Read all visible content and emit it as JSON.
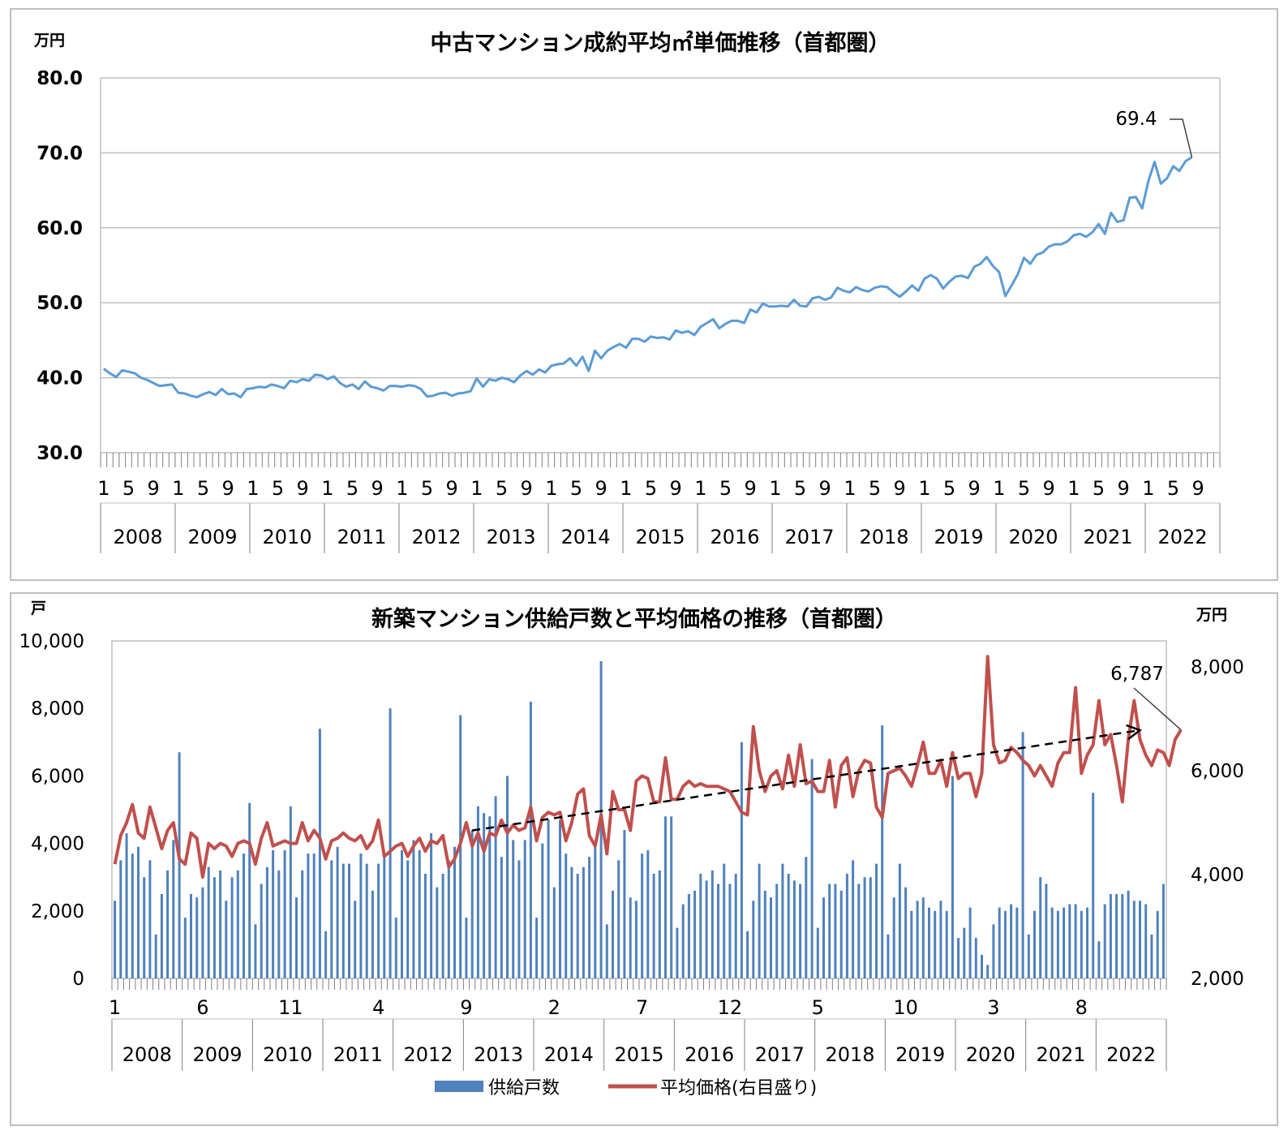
{
  "chart_data": [
    {
      "type": "line",
      "title": "中古マンション成約平均㎡単価推移（首都圏）",
      "y_unit": "万円",
      "ylim": [
        30.0,
        80.0
      ],
      "y_ticks": [
        "80.0",
        "70.0",
        "60.0",
        "50.0",
        "40.0",
        "30.0"
      ],
      "month_ticks": [
        "1",
        "5",
        "9"
      ],
      "years": [
        "2008",
        "2009",
        "2010",
        "2011",
        "2012",
        "2013",
        "2014",
        "2015",
        "2016",
        "2017",
        "2018",
        "2019",
        "2020",
        "2021",
        "2022"
      ],
      "last_value_label": "69.4",
      "grid": true,
      "series": [
        {
          "color": "#5b9bd5",
          "values": [
            41.2,
            40.6,
            40.1,
            41.0,
            40.8,
            40.6,
            40.0,
            39.7,
            39.3,
            38.9,
            39.0,
            39.1,
            38.0,
            37.9,
            37.6,
            37.4,
            37.8,
            38.1,
            37.7,
            38.5,
            37.8,
            37.9,
            37.4,
            38.5,
            38.6,
            38.8,
            38.7,
            39.1,
            38.9,
            38.6,
            39.6,
            39.4,
            39.8,
            39.6,
            40.4,
            40.3,
            39.8,
            40.2,
            39.3,
            38.8,
            39.1,
            38.5,
            39.5,
            38.8,
            38.6,
            38.3,
            38.9,
            38.9,
            38.8,
            39.0,
            38.9,
            38.5,
            37.5,
            37.6,
            37.9,
            38.0,
            37.6,
            37.9,
            38.0,
            38.2,
            39.9,
            38.8,
            39.8,
            39.6,
            40.0,
            39.8,
            39.4,
            40.3,
            40.9,
            40.4,
            41.1,
            40.7,
            41.6,
            41.8,
            41.9,
            42.6,
            41.6,
            42.8,
            40.9,
            43.6,
            42.6,
            43.6,
            44.1,
            44.5,
            44.0,
            45.2,
            45.2,
            44.8,
            45.5,
            45.3,
            45.4,
            45.1,
            46.3,
            46.0,
            46.2,
            45.7,
            46.8,
            47.3,
            47.8,
            46.6,
            47.2,
            47.6,
            47.6,
            47.3,
            49.1,
            48.7,
            49.9,
            49.5,
            49.5,
            49.6,
            49.5,
            50.4,
            49.6,
            49.5,
            50.6,
            50.8,
            50.4,
            50.7,
            52.0,
            51.6,
            51.4,
            52.1,
            51.7,
            51.5,
            52.0,
            52.2,
            52.1,
            51.4,
            50.8,
            51.5,
            52.3,
            51.6,
            53.2,
            53.7,
            53.2,
            51.9,
            52.8,
            53.5,
            53.6,
            53.3,
            54.8,
            55.2,
            56.1,
            54.9,
            54.1,
            50.9,
            52.3,
            53.8,
            56.0,
            55.2,
            56.4,
            56.7,
            57.5,
            57.8,
            57.8,
            58.2,
            59.0,
            59.2,
            58.8,
            59.4,
            60.5,
            59.2,
            62.0,
            60.8,
            61.0,
            64.0,
            64.1,
            62.6,
            66.2,
            68.8,
            65.9,
            66.6,
            68.2,
            67.6,
            68.9,
            69.4
          ]
        }
      ]
    },
    {
      "type": "bar+line",
      "title": "新築マンション供給戸数と平均価格の推移（首都圏）",
      "y_unit_left": "戸",
      "y_unit_right": "万円",
      "ylim_left": [
        0,
        10000
      ],
      "ylim_right": [
        2000,
        8500
      ],
      "y_ticks_left": [
        "10,000",
        "8,000",
        "6,000",
        "4,000",
        "2,000",
        "0"
      ],
      "y_ticks_right": [
        "8,000",
        "6,000",
        "4,000",
        "2,000"
      ],
      "month_ticks": [
        "1",
        "6",
        "11",
        "4",
        "9",
        "2",
        "7",
        "12",
        "5",
        "10",
        "3",
        "8"
      ],
      "years": [
        "2008",
        "2009",
        "2010",
        "2011",
        "2012",
        "2013",
        "2014",
        "2015",
        "2016",
        "2017",
        "2018",
        "2019",
        "2020",
        "2021",
        "2022"
      ],
      "last_value_label": "6,787",
      "trend": "dashed arrow 2013→2022",
      "legend": [
        "供給戸数",
        "平均価格(右目盛り)"
      ],
      "legend_position": "bottom",
      "series": [
        {
          "name": "供給戸数",
          "type": "bar",
          "color": "#4f81bd",
          "values": [
            2300,
            3500,
            4300,
            3700,
            3900,
            3000,
            3500,
            1300,
            2500,
            3200,
            4100,
            6700,
            1800,
            2500,
            2400,
            2700,
            3300,
            3000,
            3200,
            2300,
            3000,
            3200,
            3700,
            5200,
            1600,
            2800,
            3300,
            3800,
            3200,
            3800,
            5100,
            2400,
            3200,
            3700,
            3700,
            7400,
            1400,
            3500,
            3900,
            3400,
            3400,
            2300,
            3700,
            3400,
            2600,
            3400,
            3600,
            8000,
            1800,
            3800,
            3500,
            4100,
            3800,
            3100,
            4300,
            2700,
            3100,
            3500,
            3900,
            7800,
            1800,
            4400,
            5100,
            4900,
            4800,
            5400,
            3600,
            6000,
            4100,
            3500,
            4100,
            8200,
            1800,
            4000,
            4700,
            2700,
            4700,
            3700,
            3300,
            3100,
            3300,
            3600,
            3900,
            9400,
            1600,
            2600,
            3500,
            4400,
            2400,
            2300,
            3700,
            3800,
            3100,
            3200,
            4800,
            4800,
            1500,
            2200,
            2500,
            2600,
            3100,
            2900,
            3200,
            2800,
            3400,
            2800,
            3100,
            7000,
            1400,
            2300,
            3400,
            2600,
            2400,
            2800,
            3400,
            3100,
            2900,
            2800,
            3600,
            6500,
            1500,
            2400,
            2800,
            2800,
            2600,
            3100,
            3500,
            2800,
            3000,
            3000,
            3400,
            7500,
            1300,
            2400,
            3400,
            2700,
            2000,
            2300,
            2400,
            2100,
            2000,
            2300,
            2000,
            6000,
            1200,
            1500,
            2100,
            1200,
            700,
            400,
            1600,
            2100,
            2000,
            2200,
            2100,
            7300,
            1300,
            2000,
            3000,
            2800,
            2100,
            2000,
            2100,
            2200,
            2200,
            2000,
            2100,
            5500,
            1100,
            2200,
            2500,
            2500,
            2500,
            2600,
            2300,
            2300,
            2200,
            1300,
            2000,
            2800
          ]
        },
        {
          "name": "平均価格(右目盛り)",
          "type": "line",
          "color": "#c0504d",
          "values": [
            4200,
            4750,
            5000,
            5350,
            4800,
            4700,
            5300,
            4900,
            4500,
            4850,
            5000,
            4300,
            4200,
            4800,
            4700,
            3950,
            4600,
            4500,
            4600,
            4550,
            4350,
            4600,
            4650,
            4600,
            4200,
            4700,
            5000,
            4550,
            4600,
            4650,
            4600,
            4600,
            5000,
            4650,
            4850,
            4700,
            4300,
            4650,
            4700,
            4800,
            4700,
            4650,
            4750,
            4500,
            4650,
            5050,
            4350,
            4450,
            4550,
            4600,
            4350,
            4550,
            4700,
            4450,
            4650,
            4600,
            4750,
            4150,
            4300,
            4600,
            5000,
            4550,
            4800,
            4450,
            4800,
            4750,
            5050,
            4800,
            4950,
            4850,
            4900,
            5300,
            4650,
            5100,
            5200,
            5150,
            5200,
            4650,
            5000,
            5550,
            5650,
            4750,
            4550,
            5150,
            4400,
            5600,
            5250,
            5250,
            4850,
            5800,
            5900,
            5850,
            5400,
            5400,
            6250,
            5450,
            5450,
            5700,
            5800,
            5700,
            5750,
            5700,
            5700,
            5700,
            5650,
            5600,
            5400,
            5200,
            5150,
            6850,
            6000,
            5600,
            5900,
            6000,
            5650,
            6300,
            5700,
            6500,
            5750,
            5800,
            5600,
            5600,
            6200,
            5300,
            6100,
            6250,
            5500,
            6000,
            6200,
            6150,
            5300,
            5100,
            5950,
            6000,
            6050,
            5900,
            5700,
            6100,
            6550,
            5950,
            5950,
            6200,
            5700,
            6350,
            5850,
            5950,
            5950,
            5500,
            5950,
            8200,
            6500,
            6150,
            6200,
            6450,
            6350,
            6200,
            6100,
            5900,
            6100,
            5900,
            5700,
            6150,
            6350,
            6350,
            7600,
            5950,
            6300,
            6500,
            7350,
            6500,
            6700,
            6100,
            5400,
            6600,
            7350,
            6600,
            6300,
            6100,
            6400,
            6350,
            6100,
            6600,
            6787
          ]
        }
      ]
    }
  ]
}
